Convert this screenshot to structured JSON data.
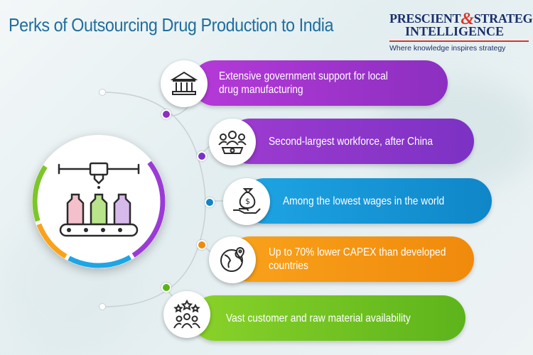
{
  "title": "Perks of Outsourcing Drug Production to India",
  "logo": {
    "line1_a": "PRESCIENT",
    "ampersand": "&",
    "line1_b": "STRATEGIC",
    "line2": "INTELLIGENCE",
    "tagline": "Where knowledge inspires strategy"
  },
  "perks": [
    {
      "icon": "government-building-icon",
      "line1": "Extensive government support for local",
      "line2": "drug manufacturing",
      "color_start": "#b53ad8",
      "color_end": "#8c2fc0"
    },
    {
      "icon": "workforce-gear-icon",
      "line1": "Second-largest workforce, after China",
      "line2": "",
      "color_start": "#9e3bd0",
      "color_end": "#7c32c4"
    },
    {
      "icon": "money-bag-hand-icon",
      "line1": "Among the lowest wages in the world",
      "line2": "",
      "color_start": "#1ea5e4",
      "color_end": "#0f86c8"
    },
    {
      "icon": "globe-location-icon",
      "line1": "Up to 70% lower CAPEX than developed",
      "line2": "countries",
      "color_start": "#f9a21b",
      "color_end": "#f08a0c"
    },
    {
      "icon": "customers-stars-icon",
      "line1": "Vast customer and raw material availability",
      "line2": "",
      "color_start": "#8ad22a",
      "color_end": "#5cb41b"
    }
  ],
  "hub_icon": "bottle-filling-conveyor-icon",
  "hub_ring_colors": [
    "#9b3bd6",
    "#1ea5e4",
    "#f9a21b",
    "#7cc62a"
  ]
}
